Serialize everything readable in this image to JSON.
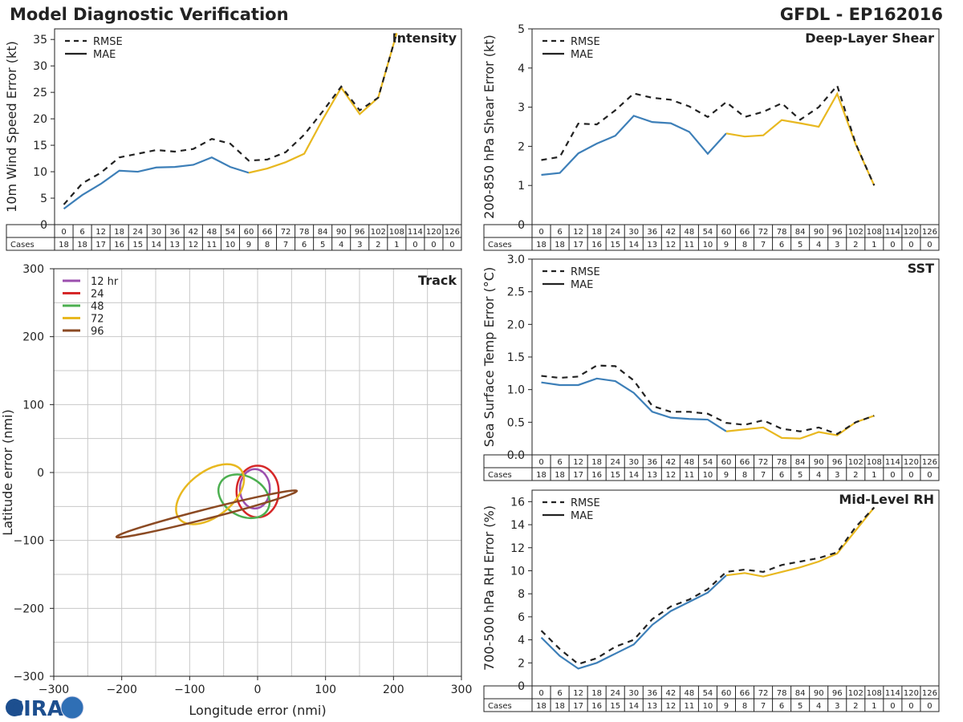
{
  "page": {
    "title": "Model Diagnostic Verification",
    "storm_label": "GFDL - EP162016",
    "logo_text": "CIRA"
  },
  "forecast_hours": [
    0,
    6,
    12,
    18,
    24,
    30,
    36,
    42,
    48,
    54,
    60,
    66,
    72,
    78,
    84,
    90,
    96,
    102,
    108,
    114,
    120,
    126
  ],
  "cases": [
    18,
    18,
    17,
    16,
    15,
    14,
    13,
    12,
    11,
    10,
    9,
    8,
    7,
    6,
    5,
    4,
    3,
    2,
    1,
    0,
    0,
    0
  ],
  "cases_label": "Cases",
  "colors": {
    "early": "#3d7fb8",
    "late": "#e8b820",
    "rmse": "#222222",
    "h12": "#9b4fae",
    "h24": "#d62728",
    "h48": "#4caf50",
    "h72": "#e8b820",
    "h96": "#8b4a23",
    "grid": "#c8c8c8"
  },
  "chart_data": [
    {
      "id": "intensity",
      "type": "line",
      "title": "Intensity",
      "ylabel": "10m Wind Speed Error (kt)",
      "ylim": [
        0,
        37
      ],
      "yticks": [
        0,
        5,
        10,
        15,
        20,
        25,
        30,
        35
      ],
      "legend": [
        "RMSE",
        "MAE"
      ],
      "split_hour": 60,
      "series": [
        {
          "name": "RMSE",
          "style": "dashed",
          "values": [
            3.8,
            7.8,
            9.8,
            12.7,
            13.4,
            14.1,
            13.8,
            14.3,
            16.2,
            15.3,
            12.1,
            12.3,
            13.7,
            17.0,
            21.4,
            26.1,
            21.6,
            24.0,
            36.2
          ]
        },
        {
          "name": "MAE",
          "style": "solid",
          "values": [
            3.0,
            5.6,
            7.7,
            10.2,
            10.0,
            10.8,
            10.9,
            11.3,
            12.7,
            10.9,
            9.8,
            10.6,
            11.8,
            13.4,
            19.9,
            25.9,
            20.9,
            24.0,
            36.2
          ]
        }
      ]
    },
    {
      "id": "shear",
      "type": "line",
      "title": "Deep-Layer Shear",
      "ylabel": "200-850 hPa Shear Error (kt)",
      "ylim": [
        0,
        5
      ],
      "yticks": [
        0,
        1,
        2,
        3,
        4,
        5
      ],
      "legend": [
        "RMSE",
        "MAE"
      ],
      "split_hour": 60,
      "series": [
        {
          "name": "RMSE",
          "style": "dashed",
          "values": [
            1.65,
            1.73,
            2.58,
            2.56,
            2.92,
            3.35,
            3.24,
            3.19,
            3.02,
            2.75,
            3.13,
            2.75,
            2.88,
            3.1,
            2.68,
            3.0,
            3.55,
            2.07,
            1.0
          ]
        },
        {
          "name": "MAE",
          "style": "solid",
          "values": [
            1.27,
            1.32,
            1.82,
            2.07,
            2.27,
            2.78,
            2.62,
            2.59,
            2.37,
            1.81,
            2.33,
            2.25,
            2.28,
            2.67,
            2.59,
            2.5,
            3.34,
            2.05,
            1.0
          ]
        }
      ]
    },
    {
      "id": "sst",
      "type": "line",
      "title": "SST",
      "ylabel": "Sea Surface Temp Error (°C)",
      "ylim": [
        0,
        3.0
      ],
      "yticks": [
        0.0,
        0.5,
        1.0,
        1.5,
        2.0,
        2.5,
        3.0
      ],
      "legend": [
        "RMSE",
        "MAE"
      ],
      "split_hour": 60,
      "series": [
        {
          "name": "RMSE",
          "style": "dashed",
          "values": [
            1.21,
            1.18,
            1.2,
            1.37,
            1.36,
            1.14,
            0.75,
            0.66,
            0.66,
            0.63,
            0.49,
            0.46,
            0.53,
            0.4,
            0.36,
            0.42,
            0.32,
            0.5,
            0.6
          ]
        },
        {
          "name": "MAE",
          "style": "solid",
          "values": [
            1.11,
            1.07,
            1.07,
            1.17,
            1.13,
            0.95,
            0.66,
            0.57,
            0.55,
            0.54,
            0.36,
            0.39,
            0.42,
            0.26,
            0.25,
            0.35,
            0.3,
            0.5,
            0.6
          ]
        }
      ]
    },
    {
      "id": "rh",
      "type": "line",
      "title": "Mid-Level RH",
      "ylabel": "700-500 hPa RH Error (%)",
      "ylim": [
        0,
        17
      ],
      "yticks": [
        0,
        2,
        4,
        6,
        8,
        10,
        12,
        14,
        16
      ],
      "legend": [
        "RMSE",
        "MAE"
      ],
      "split_hour": 60,
      "series": [
        {
          "name": "RMSE",
          "style": "dashed",
          "values": [
            4.8,
            3.2,
            1.9,
            2.4,
            3.4,
            4.0,
            5.8,
            6.9,
            7.5,
            8.4,
            9.9,
            10.1,
            9.9,
            10.5,
            10.8,
            11.1,
            11.6,
            13.8,
            15.5
          ]
        },
        {
          "name": "MAE",
          "style": "solid",
          "values": [
            4.2,
            2.6,
            1.5,
            2.0,
            2.8,
            3.6,
            5.3,
            6.5,
            7.3,
            8.1,
            9.6,
            9.8,
            9.5,
            9.9,
            10.3,
            10.8,
            11.5,
            13.5,
            15.5
          ]
        }
      ]
    },
    {
      "id": "track",
      "type": "scatter",
      "title": "Track",
      "xlabel": "Longitude error (nmi)",
      "ylabel": "Latitude error (nmi)",
      "xlim": [
        -300,
        300
      ],
      "ylim": [
        -300,
        300
      ],
      "xticks": [
        -300,
        -200,
        -100,
        0,
        100,
        200,
        300
      ],
      "yticks": [
        -300,
        -200,
        -100,
        0,
        100,
        200,
        300
      ],
      "minor_step": 50,
      "legend": [
        "12 hr",
        "24",
        "48",
        "72",
        "96"
      ],
      "ellipses": [
        {
          "label": "12 hr",
          "cx": -4,
          "cy": -24,
          "rx": 22,
          "ry": 29,
          "angle": 0,
          "color_key": "h12"
        },
        {
          "label": "24",
          "cx": 0,
          "cy": -28,
          "rx": 31,
          "ry": 38,
          "angle": 0,
          "color_key": "h24"
        },
        {
          "label": "48",
          "cx": -20,
          "cy": -35,
          "rx": 40,
          "ry": 29,
          "angle": 30,
          "color_key": "h48"
        },
        {
          "label": "72",
          "cx": -70,
          "cy": -32,
          "rx": 58,
          "ry": 33,
          "angle": -38,
          "color_key": "h72"
        },
        {
          "label": "96",
          "cx": -75,
          "cy": -61,
          "rx": 137,
          "ry": 7,
          "angle": -14.3,
          "color_key": "h96"
        }
      ]
    }
  ]
}
